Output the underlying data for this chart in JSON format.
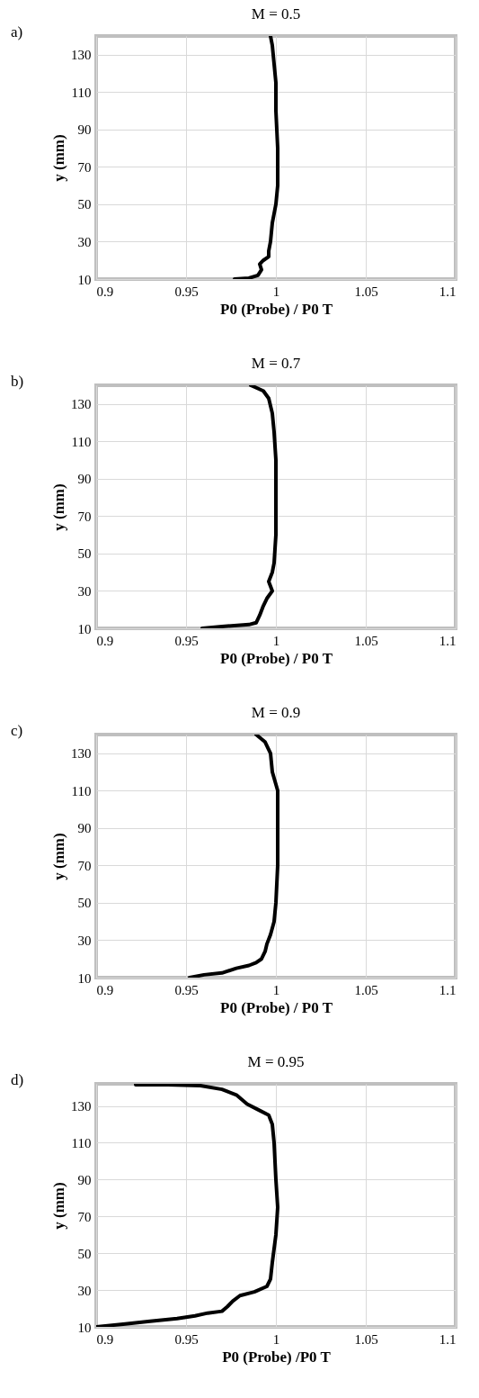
{
  "chart_data": [
    {
      "type": "line",
      "title": "M = 0.5",
      "xlabel": "P0 (Probe) / P0 T",
      "ylabel": "y (mm)",
      "annotations": [
        "a)"
      ],
      "xlim": [
        0.9,
        1.1
      ],
      "xticks": [
        0.9,
        0.95,
        1,
        1.05,
        1.1
      ],
      "ylim": [
        10,
        140
      ],
      "yticks": [
        10,
        30,
        50,
        70,
        90,
        110,
        130
      ],
      "grid": true,
      "line_style": "solid",
      "series": [
        {
          "color": "#000000",
          "x": [
            0.977,
            0.985,
            0.99,
            0.992,
            0.991,
            0.993,
            0.996,
            0.996,
            0.997,
            0.998,
            1.0,
            1.001,
            1.001,
            1.0,
            1.0,
            0.999,
            0.998,
            0.997
          ],
          "values": [
            10,
            10.5,
            12,
            15,
            18,
            20,
            22,
            25,
            30,
            40,
            50,
            60,
            80,
            100,
            115,
            125,
            135,
            140
          ]
        }
      ]
    },
    {
      "type": "line",
      "title": "M = 0.7",
      "xlabel": "P0 (Probe) / P0 T",
      "ylabel": "y (mm)",
      "annotations": [
        "b)"
      ],
      "xlim": [
        0.9,
        1.1
      ],
      "xticks": [
        0.9,
        0.95,
        1,
        1.05,
        1.1
      ],
      "ylim": [
        10,
        140
      ],
      "yticks": [
        10,
        30,
        50,
        70,
        90,
        110,
        130
      ],
      "grid": true,
      "line_style": "solid",
      "series": [
        {
          "color": "#000000",
          "x": [
            0.959,
            0.97,
            0.985,
            0.989,
            0.991,
            0.993,
            0.995,
            0.998,
            0.996,
            0.998,
            0.999,
            1.0,
            1.0,
            1.0,
            0.999,
            0.998,
            0.996,
            0.993,
            0.986
          ],
          "values": [
            10,
            11,
            12,
            13,
            17,
            22,
            26,
            30,
            35,
            40,
            45,
            60,
            80,
            100,
            115,
            125,
            133,
            137,
            140
          ]
        }
      ]
    },
    {
      "type": "line",
      "title": "M = 0.9",
      "xlabel": "P0 (Probe) / P0 T",
      "ylabel": "y (mm)",
      "annotations": [
        "c)"
      ],
      "xlim": [
        0.9,
        1.1
      ],
      "xticks": [
        0.9,
        0.95,
        1,
        1.05,
        1.1
      ],
      "ylim": [
        10,
        140
      ],
      "yticks": [
        10,
        30,
        50,
        70,
        90,
        110,
        130
      ],
      "grid": true,
      "line_style": "solid",
      "series": [
        {
          "color": "#000000",
          "x": [
            0.952,
            0.96,
            0.97,
            0.978,
            0.985,
            0.989,
            0.992,
            0.994,
            0.995,
            0.997,
            0.999,
            1.0,
            1.001,
            1.001,
            1.001,
            0.998,
            0.997,
            0.994,
            0.989
          ],
          "values": [
            10,
            11.5,
            12.5,
            15,
            16.5,
            18,
            20,
            24,
            28,
            33,
            40,
            50,
            70,
            90,
            110,
            120,
            130,
            136,
            140
          ]
        }
      ]
    },
    {
      "type": "line",
      "title": "M = 0.95",
      "xlabel": "P0 (Probe) /P0 T",
      "ylabel": "y (mm)",
      "annotations": [
        "d)"
      ],
      "xlim": [
        0.9,
        1.1
      ],
      "xticks": [
        0.9,
        0.95,
        1,
        1.05,
        1.1
      ],
      "ylim": [
        10,
        142
      ],
      "yticks": [
        10,
        30,
        50,
        70,
        90,
        110,
        130
      ],
      "grid": true,
      "line_style": "solid",
      "series": [
        {
          "color": "#000000",
          "x": [
            0.9,
            0.915,
            0.93,
            0.945,
            0.955,
            0.962,
            0.97,
            0.973,
            0.976,
            0.98,
            0.988,
            0.995,
            0.997,
            0.998,
            1.0,
            1.001,
            1.0,
            0.999,
            0.998,
            0.996,
            0.99,
            0.984,
            0.978,
            0.97,
            0.958,
            0.94,
            0.922
          ],
          "values": [
            10,
            11.5,
            13,
            14.5,
            16,
            17.5,
            18.5,
            21,
            24,
            27,
            29,
            32,
            36,
            45,
            60,
            75,
            90,
            110,
            120,
            125,
            128,
            131,
            136,
            139,
            141,
            141.5,
            141.5
          ]
        }
      ]
    }
  ]
}
